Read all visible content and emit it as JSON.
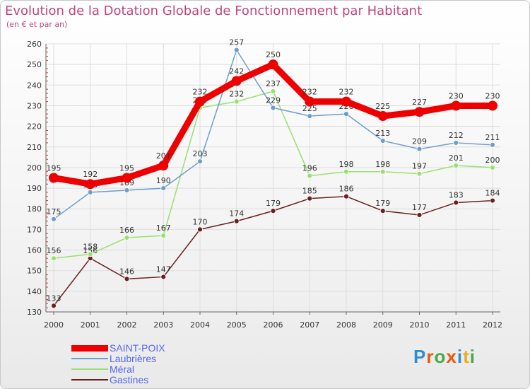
{
  "title": "Evolution de la Dotation Globale de Fonctionnement par Habitant",
  "subtitle": "(en € et par an)",
  "logo": {
    "text": "Proxiti",
    "colors": [
      "#2e8fd4",
      "#e8590c",
      "#4aa84a",
      "#e8590c",
      "#2e8fd4",
      "#f0a91c",
      "#4aa84a"
    ]
  },
  "chart_data": {
    "type": "line",
    "title": "Evolution de la Dotation Globale de Fonctionnement par Habitant",
    "subtitle": "(en € et par an)",
    "x": [
      "2000",
      "2001",
      "2002",
      "2003",
      "2004",
      "2005",
      "2006",
      "2007",
      "2008",
      "2009",
      "2010",
      "2011",
      "2012"
    ],
    "ylim": [
      130,
      260
    ],
    "yticks": [
      "130",
      "140",
      "150",
      "160",
      "170",
      "180",
      "190",
      "200",
      "210",
      "220",
      "230",
      "240",
      "250",
      "260"
    ],
    "grid": true,
    "legend_position": "bottom-left",
    "series": [
      {
        "name": "SAINT-POIX",
        "color": "#ee0000",
        "values": [
          195,
          192,
          195,
          201,
          232,
          242,
          250,
          232,
          232,
          225,
          227,
          230,
          230
        ]
      },
      {
        "name": "Laubrières",
        "color": "#6d9ecb",
        "values": [
          175,
          188,
          189,
          190,
          203,
          257,
          229,
          225,
          226,
          213,
          209,
          212,
          211
        ]
      },
      {
        "name": "Méral",
        "color": "#99e070",
        "values": [
          156,
          158,
          166,
          167,
          229,
          232,
          237,
          196,
          198,
          198,
          197,
          201,
          200
        ]
      },
      {
        "name": "Gastines",
        "color": "#6b2020",
        "values": [
          133,
          156,
          146,
          147,
          170,
          174,
          179,
          185,
          186,
          179,
          177,
          183,
          184
        ]
      }
    ]
  }
}
